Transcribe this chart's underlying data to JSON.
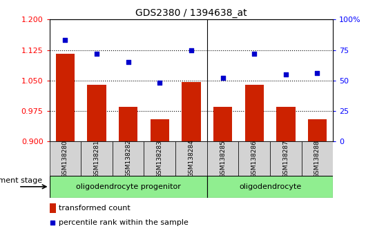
{
  "title": "GDS2380 / 1394638_at",
  "categories": [
    "GSM138280",
    "GSM138281",
    "GSM138282",
    "GSM138283",
    "GSM138284",
    "GSM138285",
    "GSM138286",
    "GSM138287",
    "GSM138288"
  ],
  "bar_values": [
    1.115,
    1.04,
    0.985,
    0.955,
    1.047,
    0.985,
    1.04,
    0.985,
    0.955
  ],
  "dot_values": [
    83,
    72,
    65,
    48,
    75,
    52,
    72,
    55,
    56
  ],
  "bar_color": "#cc2200",
  "dot_color": "#0000cc",
  "ylim_left": [
    0.9,
    1.2
  ],
  "ylim_right": [
    0,
    100
  ],
  "yticks_left": [
    0.9,
    0.975,
    1.05,
    1.125,
    1.2
  ],
  "yticks_right": [
    0,
    25,
    50,
    75,
    100
  ],
  "ytick_labels_right": [
    "0",
    "25",
    "50",
    "75",
    "100%"
  ],
  "hlines": [
    0.975,
    1.05,
    1.125
  ],
  "group1_label": "oligodendrocyte progenitor",
  "group2_label": "oligodendrocyte",
  "group1_count": 5,
  "group2_count": 4,
  "dev_stage_label": "development stage",
  "legend_bar_label": "transformed count",
  "legend_dot_label": "percentile rank within the sample",
  "bar_width": 0.6,
  "group_box_color": "#90ee90",
  "sample_box_color": "#d3d3d3"
}
